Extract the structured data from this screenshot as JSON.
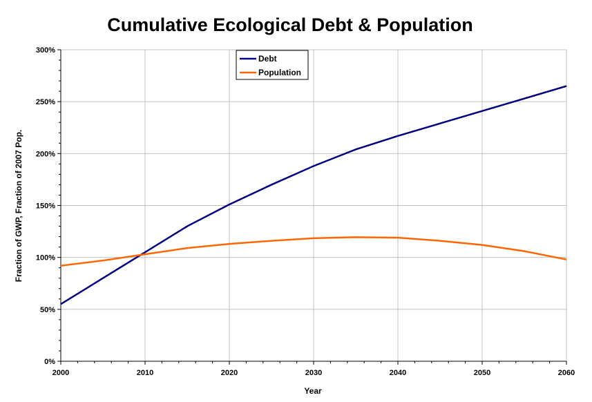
{
  "chart_data": {
    "type": "line",
    "title": "Cumulative Ecological Debt & Population",
    "xlabel": "Year",
    "ylabel": "Fraction of GWP, Fraction of 2007 Pop.",
    "xlim": [
      2000,
      2060
    ],
    "ylim": [
      0,
      300
    ],
    "x_ticks": [
      "2000",
      "2010",
      "2020",
      "2030",
      "2040",
      "2050",
      "2060"
    ],
    "y_ticks": [
      "0%",
      "50%",
      "100%",
      "150%",
      "200%",
      "250%",
      "300%"
    ],
    "grid": true,
    "legend_position": "top-center",
    "x": [
      2000,
      2005,
      2010,
      2015,
      2020,
      2025,
      2030,
      2035,
      2040,
      2045,
      2050,
      2055,
      2060
    ],
    "series": [
      {
        "name": "Debt",
        "color": "#000080",
        "values": [
          55,
          80,
          105,
          130,
          151,
          170,
          188,
          204,
          217,
          229,
          241,
          253,
          265
        ]
      },
      {
        "name": "Population",
        "color": "#ff6600",
        "values": [
          92,
          97,
          103,
          109,
          113,
          116,
          118.5,
          119.5,
          119,
          116,
          112,
          106,
          98
        ]
      }
    ]
  }
}
